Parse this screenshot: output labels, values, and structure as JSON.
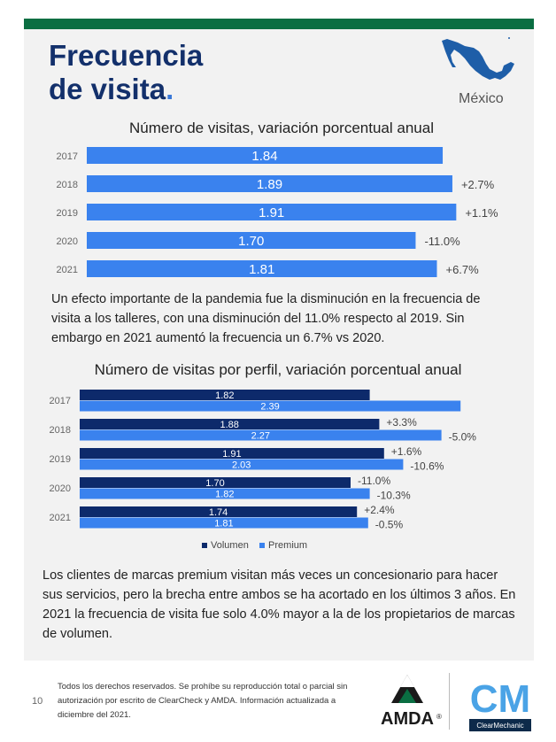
{
  "header": {
    "title_line1": "Frecuencia",
    "title_line2": "de visita",
    "title_dot": ".",
    "country": "México",
    "map_icon": "mexico-map-icon"
  },
  "colors": {
    "green_bar": "#0a6e42",
    "navy": "#13306b",
    "bar_light": "#3a82ee",
    "bar_dark": "#0d2a6b"
  },
  "chart_data": [
    {
      "type": "bar",
      "orientation": "horizontal",
      "title": "Número de visitas, variación porcentual anual",
      "categories": [
        "2017",
        "2018",
        "2019",
        "2020",
        "2021"
      ],
      "values": [
        1.84,
        1.89,
        1.91,
        1.7,
        1.81
      ],
      "value_labels": [
        "1.84",
        "1.89",
        "1.91",
        "1.70",
        "1.81"
      ],
      "change_labels": [
        "",
        "+2.7%",
        "+1.1%",
        "-11.0%",
        "+6.7%"
      ]
    },
    {
      "type": "bar",
      "orientation": "horizontal",
      "title": "Número de visitas por perfil, variación porcentual anual",
      "categories": [
        "2017",
        "2018",
        "2019",
        "2020",
        "2021"
      ],
      "series": [
        {
          "name": "Volumen",
          "values": [
            1.82,
            1.88,
            1.91,
            1.7,
            1.74
          ],
          "value_labels": [
            "1.82",
            "1.88",
            "1.91",
            "1.70",
            "1.74"
          ],
          "change_labels": [
            "",
            "+3.3%",
            "+1.6%",
            "-11.0%",
            "+2.4%"
          ]
        },
        {
          "name": "Premium",
          "values": [
            2.39,
            2.27,
            2.03,
            1.82,
            1.81
          ],
          "value_labels": [
            "2.39",
            "2.27",
            "2.03",
            "1.82",
            "1.81"
          ],
          "change_labels": [
            "",
            "-5.0%",
            "-10.6%",
            "-10.3%",
            "-0.5%"
          ]
        }
      ],
      "legend": [
        "Volumen",
        "Premium"
      ]
    }
  ],
  "paragraph1": "Un efecto importante de la pandemia fue la disminución en la frecuencia de visita a los talleres, con una disminución del 11.0% respecto al 2019. Sin embargo en 2021 aumentó la frecuencia un 6.7% vs 2020.",
  "paragraph2": "Los clientes de marcas premium visitan más veces un concesionario para hacer sus servicios, pero la brecha entre ambos se ha acortado en los últimos 3 años. En 2021 la frecuencia de visita fue solo 4.0% mayor a la de los propietarios de marcas de volumen.",
  "footer": {
    "page_number": "10",
    "rights": "Todos los derechos reservados. Se prohíbe su reproducción total o parcial sin autorización por escrito de ClearCheck y AMDA. Información actualizada a diciembre del 2021.",
    "logo1": "AMDA",
    "logo1_mark": "®",
    "logo2_short": "CM",
    "logo2": "ClearMechanic"
  }
}
